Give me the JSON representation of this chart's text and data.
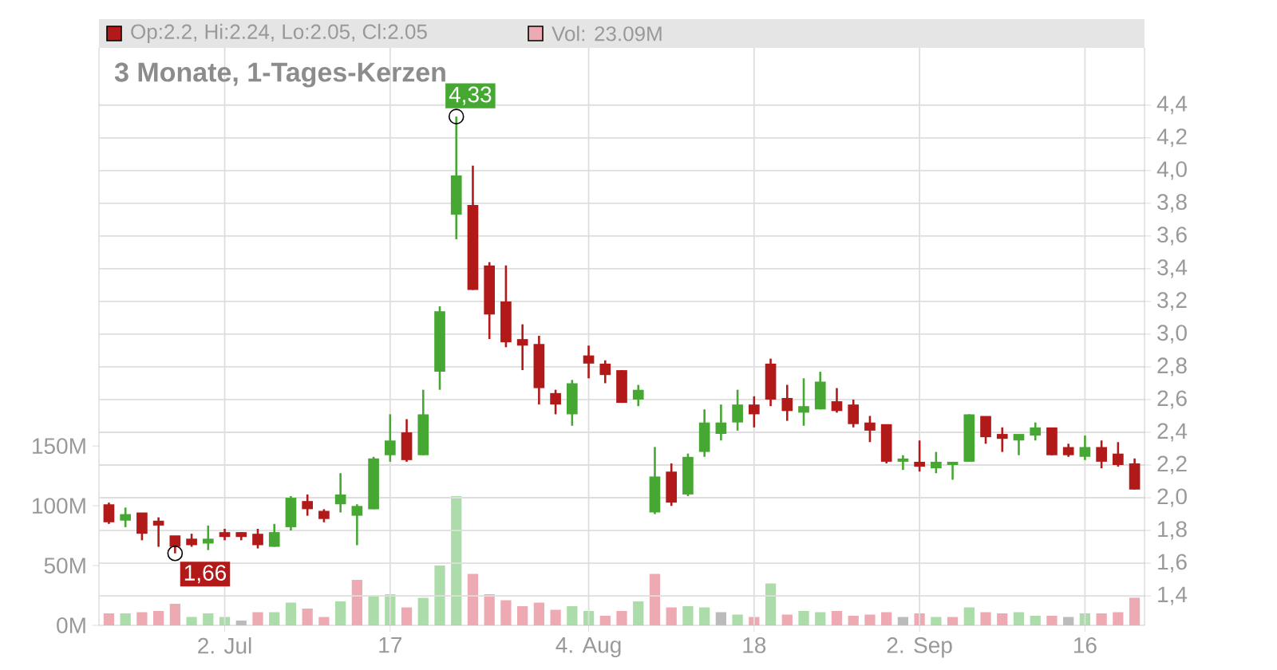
{
  "chart_data": {
    "type": "candlestick",
    "title": "3 Monate, 1-Tages-Kerzen",
    "annotations": [
      "Op:2.2, Hi:2.24, Lo:2.05, Cl:2.05",
      "Vol: 23.09M",
      "4,33",
      "1,66"
    ],
    "categories": [
      null,
      null,
      null,
      null,
      null,
      null,
      null,
      "2. Jul",
      null,
      null,
      null,
      null,
      null,
      null,
      null,
      null,
      null,
      "17",
      null,
      null,
      null,
      null,
      null,
      null,
      null,
      null,
      null,
      null,
      null,
      "4. Aug",
      null,
      null,
      null,
      null,
      null,
      null,
      null,
      null,
      null,
      "18",
      null,
      null,
      null,
      null,
      null,
      null,
      null,
      null,
      null,
      "2. Sep",
      null,
      null,
      null,
      null,
      null,
      null,
      null,
      null,
      null,
      "16",
      null,
      null,
      null
    ],
    "ohlc": [
      [
        1.95,
        1.97,
        1.84,
        1.85
      ],
      [
        1.86,
        1.94,
        1.82,
        1.89
      ],
      [
        1.9,
        1.9,
        1.74,
        1.78
      ],
      [
        1.85,
        1.88,
        1.7,
        1.83
      ],
      [
        1.76,
        1.76,
        1.66,
        1.7
      ],
      [
        1.74,
        1.78,
        1.7,
        1.71
      ],
      [
        1.72,
        1.83,
        1.68,
        1.74
      ],
      [
        1.78,
        1.81,
        1.74,
        1.76
      ],
      [
        1.78,
        1.79,
        1.74,
        1.76
      ],
      [
        1.77,
        1.81,
        1.69,
        1.71
      ],
      [
        1.7,
        1.84,
        1.7,
        1.78
      ],
      [
        1.82,
        2.01,
        1.8,
        1.99
      ],
      [
        1.97,
        2.02,
        1.89,
        1.93
      ],
      [
        1.91,
        1.93,
        1.85,
        1.87
      ],
      [
        1.96,
        2.15,
        1.91,
        2.01
      ],
      [
        1.89,
        1.96,
        1.71,
        1.94
      ],
      [
        1.93,
        2.25,
        1.93,
        2.23
      ],
      [
        2.26,
        2.51,
        2.22,
        2.34
      ],
      [
        2.39,
        2.48,
        2.22,
        2.23
      ],
      [
        2.26,
        2.66,
        2.26,
        2.5
      ],
      [
        2.77,
        3.17,
        2.66,
        3.13
      ],
      [
        3.73,
        4.33,
        3.58,
        3.96
      ],
      [
        3.78,
        4.03,
        3.27,
        3.27
      ],
      [
        3.41,
        3.44,
        2.97,
        3.12
      ],
      [
        3.19,
        3.42,
        2.92,
        2.95
      ],
      [
        2.96,
        3.06,
        2.78,
        2.93
      ],
      [
        2.93,
        2.99,
        2.57,
        2.67
      ],
      [
        2.63,
        2.66,
        2.51,
        2.57
      ],
      [
        2.51,
        2.72,
        2.44,
        2.69
      ],
      [
        2.86,
        2.93,
        2.73,
        2.82
      ],
      [
        2.81,
        2.84,
        2.7,
        2.75
      ],
      [
        2.77,
        2.78,
        2.58,
        2.58
      ],
      [
        2.6,
        2.69,
        2.56,
        2.65
      ],
      [
        1.91,
        2.31,
        1.9,
        2.12
      ],
      [
        2.15,
        2.21,
        1.95,
        1.97
      ],
      [
        2.02,
        2.27,
        2.01,
        2.24
      ],
      [
        2.28,
        2.54,
        2.25,
        2.45
      ],
      [
        2.39,
        2.57,
        2.35,
        2.45
      ],
      [
        2.46,
        2.66,
        2.41,
        2.56
      ],
      [
        2.56,
        2.62,
        2.43,
        2.51
      ],
      [
        2.81,
        2.85,
        2.56,
        2.6
      ],
      [
        2.6,
        2.69,
        2.47,
        2.53
      ],
      [
        2.52,
        2.73,
        2.44,
        2.55
      ],
      [
        2.54,
        2.77,
        2.54,
        2.7
      ],
      [
        2.58,
        2.67,
        2.52,
        2.53
      ],
      [
        2.56,
        2.6,
        2.43,
        2.45
      ],
      [
        2.45,
        2.5,
        2.34,
        2.41
      ],
      [
        2.44,
        2.44,
        2.21,
        2.22
      ],
      [
        2.22,
        2.26,
        2.17,
        2.23
      ],
      [
        2.21,
        2.35,
        2.16,
        2.19
      ],
      [
        2.18,
        2.28,
        2.15,
        2.21
      ],
      [
        2.2,
        2.21,
        2.11,
        2.21
      ],
      [
        2.22,
        2.51,
        2.22,
        2.5
      ],
      [
        2.49,
        2.49,
        2.33,
        2.37
      ],
      [
        2.38,
        2.43,
        2.28,
        2.36
      ],
      [
        2.35,
        2.38,
        2.26,
        2.38
      ],
      [
        2.38,
        2.46,
        2.35,
        2.42
      ],
      [
        2.42,
        2.42,
        2.26,
        2.26
      ],
      [
        2.3,
        2.33,
        2.25,
        2.26
      ],
      [
        2.25,
        2.38,
        2.23,
        2.3
      ],
      [
        2.3,
        2.35,
        2.18,
        2.22
      ],
      [
        2.26,
        2.34,
        2.19,
        2.2
      ],
      [
        2.2,
        2.24,
        2.05,
        2.05
      ]
    ],
    "colors": [
      "#b21a1a",
      "#46a832",
      "#b21a1a",
      "#b21a1a",
      "#b21a1a",
      "#b21a1a",
      "#46a832",
      "#b21a1a",
      "#b21a1a",
      "#b21a1a",
      "#46a832",
      "#46a832",
      "#b21a1a",
      "#b21a1a",
      "#46a832",
      "#46a832",
      "#46a832",
      "#46a832",
      "#b21a1a",
      "#46a832",
      "#46a832",
      "#46a832",
      "#b21a1a",
      "#b21a1a",
      "#b21a1a",
      "#b21a1a",
      "#b21a1a",
      "#b21a1a",
      "#46a832",
      "#b21a1a",
      "#b21a1a",
      "#b21a1a",
      "#46a832",
      "#46a832",
      "#b21a1a",
      "#46a832",
      "#46a832",
      "#46a832",
      "#46a832",
      "#b21a1a",
      "#b21a1a",
      "#b21a1a",
      "#46a832",
      "#46a832",
      "#b21a1a",
      "#b21a1a",
      "#b21a1a",
      "#b21a1a",
      "#46a832",
      "#b21a1a",
      "#46a832",
      "#46a832",
      "#46a832",
      "#b21a1a",
      "#b21a1a",
      "#46a832",
      "#46a832",
      "#b21a1a",
      "#b21a1a",
      "#46a832",
      "#b21a1a",
      "#b21a1a",
      "#b21a1a"
    ],
    "series": [
      {
        "type": "bar",
        "axis": "y2",
        "values": [
          10,
          10,
          11,
          12,
          18,
          7,
          10,
          7,
          4,
          11,
          11,
          19,
          14,
          7,
          20,
          38,
          25,
          26,
          15,
          23,
          50,
          108,
          43,
          26,
          21,
          16,
          19,
          13,
          16,
          12,
          8,
          12,
          20,
          43,
          15,
          16,
          15,
          11,
          9,
          7,
          35,
          9,
          12,
          11,
          12,
          8,
          9,
          11,
          7,
          10,
          7,
          7,
          15,
          11,
          10,
          11,
          8,
          8,
          7,
          10,
          10,
          11,
          23.09
        ],
        "colors": [
          "#eeaab2",
          "#acdcaa",
          "#eeaab2",
          "#eeaab2",
          "#eeaab2",
          "#acdcaa",
          "#acdcaa",
          "#acdcaa",
          "#bbbbbb",
          "#eeaab2",
          "#acdcaa",
          "#acdcaa",
          "#eeaab2",
          "#eeaab2",
          "#acdcaa",
          "#eeaab2",
          "#acdcaa",
          "#acdcaa",
          "#eeaab2",
          "#acdcaa",
          "#acdcaa",
          "#acdcaa",
          "#eeaab2",
          "#eeaab2",
          "#eeaab2",
          "#eeaab2",
          "#eeaab2",
          "#eeaab2",
          "#acdcaa",
          "#acdcaa",
          "#eeaab2",
          "#eeaab2",
          "#acdcaa",
          "#eeaab2",
          "#eeaab2",
          "#acdcaa",
          "#acdcaa",
          "#bbbbbb",
          "#acdcaa",
          "#eeaab2",
          "#acdcaa",
          "#eeaab2",
          "#acdcaa",
          "#acdcaa",
          "#eeaab2",
          "#eeaab2",
          "#eeaab2",
          "#eeaab2",
          "#bbbbbb",
          "#eeaab2",
          "#acdcaa",
          "#eeaab2",
          "#acdcaa",
          "#eeaab2",
          "#eeaab2",
          "#acdcaa",
          "#acdcaa",
          "#eeaab2",
          "#bbbbbb",
          "#acdcaa",
          "#eeaab2",
          "#eeaab2",
          "#eeaab2"
        ]
      }
    ],
    "ylim": [
      1.22,
      4.75
    ],
    "yticks": [
      {
        "value": 1.4,
        "label": "1,4"
      },
      {
        "value": 1.6,
        "label": "1,6"
      },
      {
        "value": 1.8,
        "label": "1,8"
      },
      {
        "value": 2.0,
        "label": "2,0"
      },
      {
        "value": 2.2,
        "label": "2,2"
      },
      {
        "value": 2.4,
        "label": "2,4"
      },
      {
        "value": 2.6,
        "label": "2,6"
      },
      {
        "value": 2.8,
        "label": "2,8"
      },
      {
        "value": 3.0,
        "label": "3,0"
      },
      {
        "value": 3.2,
        "label": "3,2"
      },
      {
        "value": 3.4,
        "label": "3,4"
      },
      {
        "value": 3.6,
        "label": "3,6"
      },
      {
        "value": 3.8,
        "label": "3,8"
      },
      {
        "value": 4.0,
        "label": "4,0"
      },
      {
        "value": 4.2,
        "label": "4,2"
      },
      {
        "value": 4.4,
        "label": "4,4"
      }
    ],
    "y2lim": [
      0,
      483
    ],
    "y2ticks": [
      {
        "value": 0,
        "label": "0M"
      },
      {
        "value": 50,
        "label": "50M"
      },
      {
        "value": 100,
        "label": "100M"
      },
      {
        "value": 150,
        "label": "150M"
      }
    ],
    "grid": true
  }
}
